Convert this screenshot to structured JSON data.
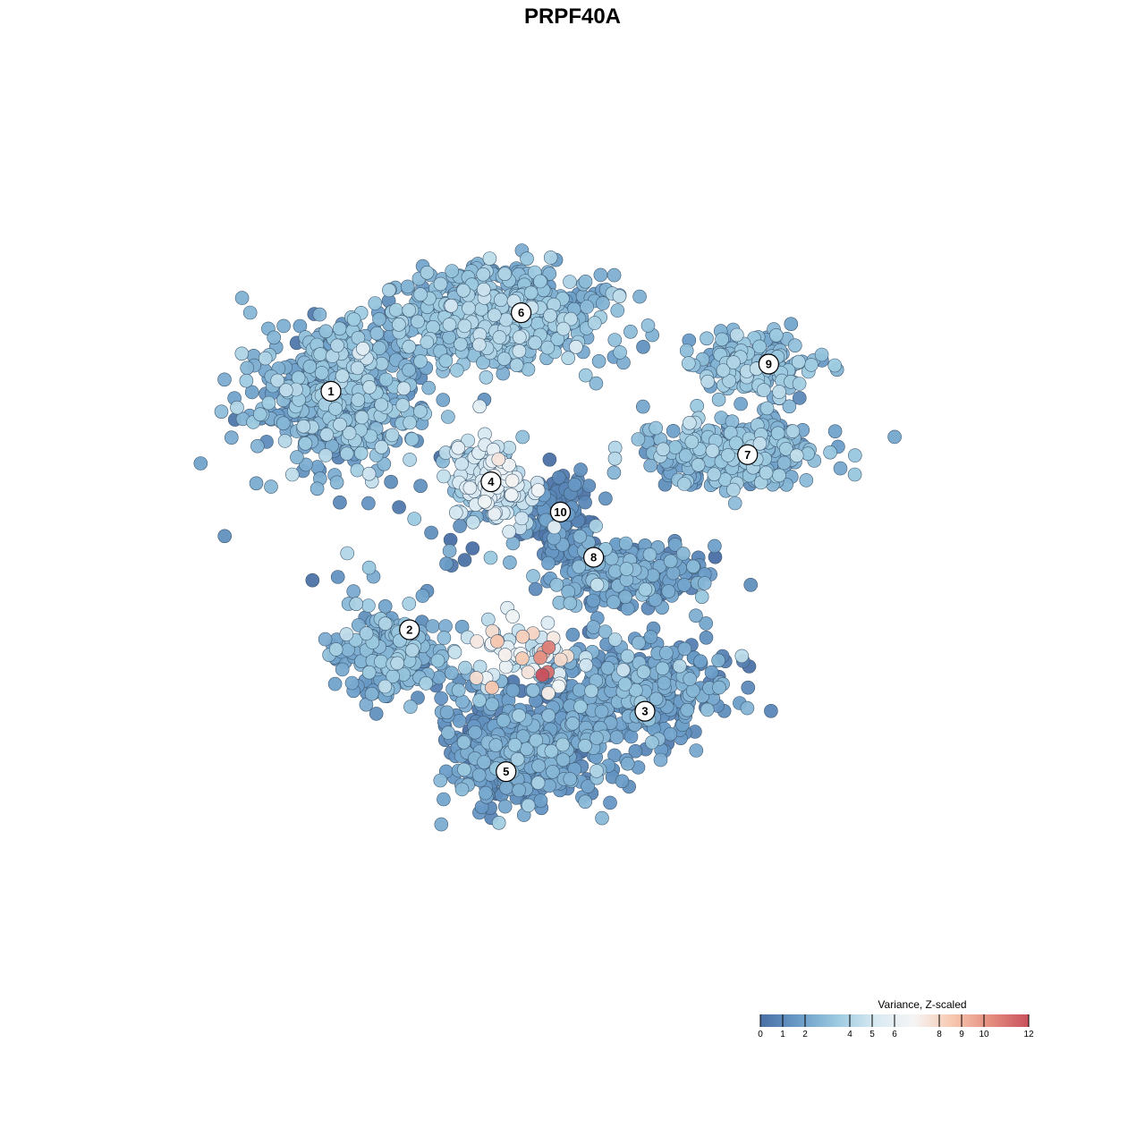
{
  "chart_data": {
    "type": "scatter",
    "title": "PRPF40A",
    "xlabel": "",
    "ylabel": "",
    "grid": false,
    "legend": {
      "title": "Variance, Z-scaled",
      "placement": "bottom-right",
      "range": [
        0,
        12
      ],
      "ticks": [
        0,
        1,
        2,
        4,
        5,
        6,
        8,
        9,
        10,
        12
      ],
      "colors": [
        "#4a6fa5",
        "#6a9cc8",
        "#9ccae0",
        "#d8e9f2",
        "#f5f5f5",
        "#f7c8b0",
        "#e58e80",
        "#c8505c"
      ]
    },
    "clusters": [
      {
        "label": "1",
        "x": -8.0,
        "y": 5.5,
        "value": 2.6
      },
      {
        "label": "2",
        "x": -5.4,
        "y": -2.4,
        "value": 2.2
      },
      {
        "label": "3",
        "x": 2.4,
        "y": -5.1,
        "value": 1.7
      },
      {
        "label": "4",
        "x": -2.7,
        "y": 2.5,
        "value": 4.4
      },
      {
        "label": "5",
        "x": -2.2,
        "y": -7.1,
        "value": 1.6
      },
      {
        "label": "6",
        "x": -1.7,
        "y": 8.1,
        "value": 2.8
      },
      {
        "label": "7",
        "x": 5.8,
        "y": 3.4,
        "value": 2.6
      },
      {
        "label": "8",
        "x": 0.7,
        "y": 0.0,
        "value": 1.6
      },
      {
        "label": "9",
        "x": 6.5,
        "y": 6.4,
        "value": 2.9
      },
      {
        "label": "10",
        "x": -0.4,
        "y": 1.5,
        "value": 0.9
      }
    ]
  }
}
